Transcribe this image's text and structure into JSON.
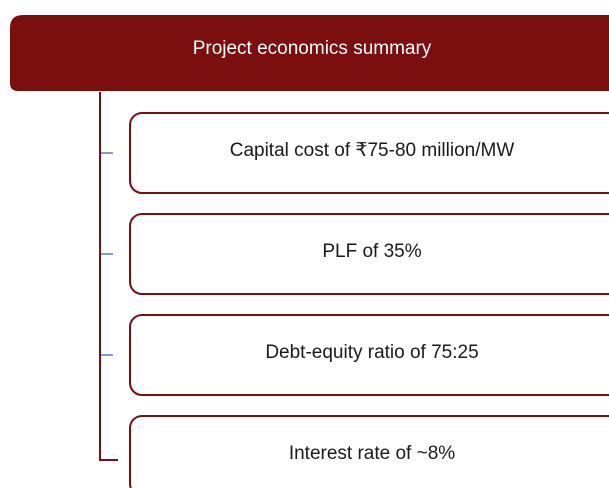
{
  "header": {
    "title": "Project economics summary"
  },
  "items": [
    {
      "label": "Capital cost of ₹75-80 million/MW"
    },
    {
      "label": "PLF of 35%"
    },
    {
      "label": "Debt-equity ratio of 75:25"
    },
    {
      "label": "Interest rate of ~8%"
    }
  ]
}
